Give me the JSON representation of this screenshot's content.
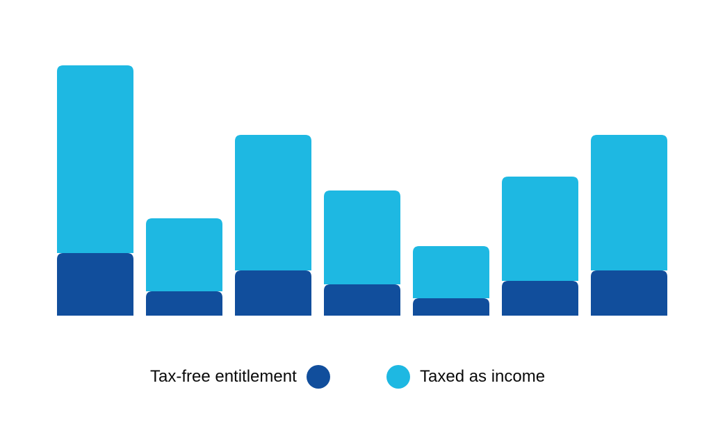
{
  "chart_data": {
    "type": "bar",
    "stacked": true,
    "categories": [
      "",
      "",
      "",
      "",
      "",
      "",
      ""
    ],
    "series": [
      {
        "name": "Tax-free entitlement",
        "color": "#114e9c",
        "values": [
          90,
          35,
          65,
          45,
          25,
          50,
          65
        ]
      },
      {
        "name": "Taxed as income",
        "color": "#1eb8e2",
        "values": [
          270,
          105,
          195,
          135,
          75,
          150,
          195
        ]
      }
    ],
    "ylim": [
      0,
      360
    ],
    "grid": false,
    "legend_position": "bottom",
    "title": "",
    "xlabel": "",
    "ylabel": ""
  },
  "legend": {
    "item1_label": "Tax-free entitlement",
    "item2_label": "Taxed as income"
  }
}
